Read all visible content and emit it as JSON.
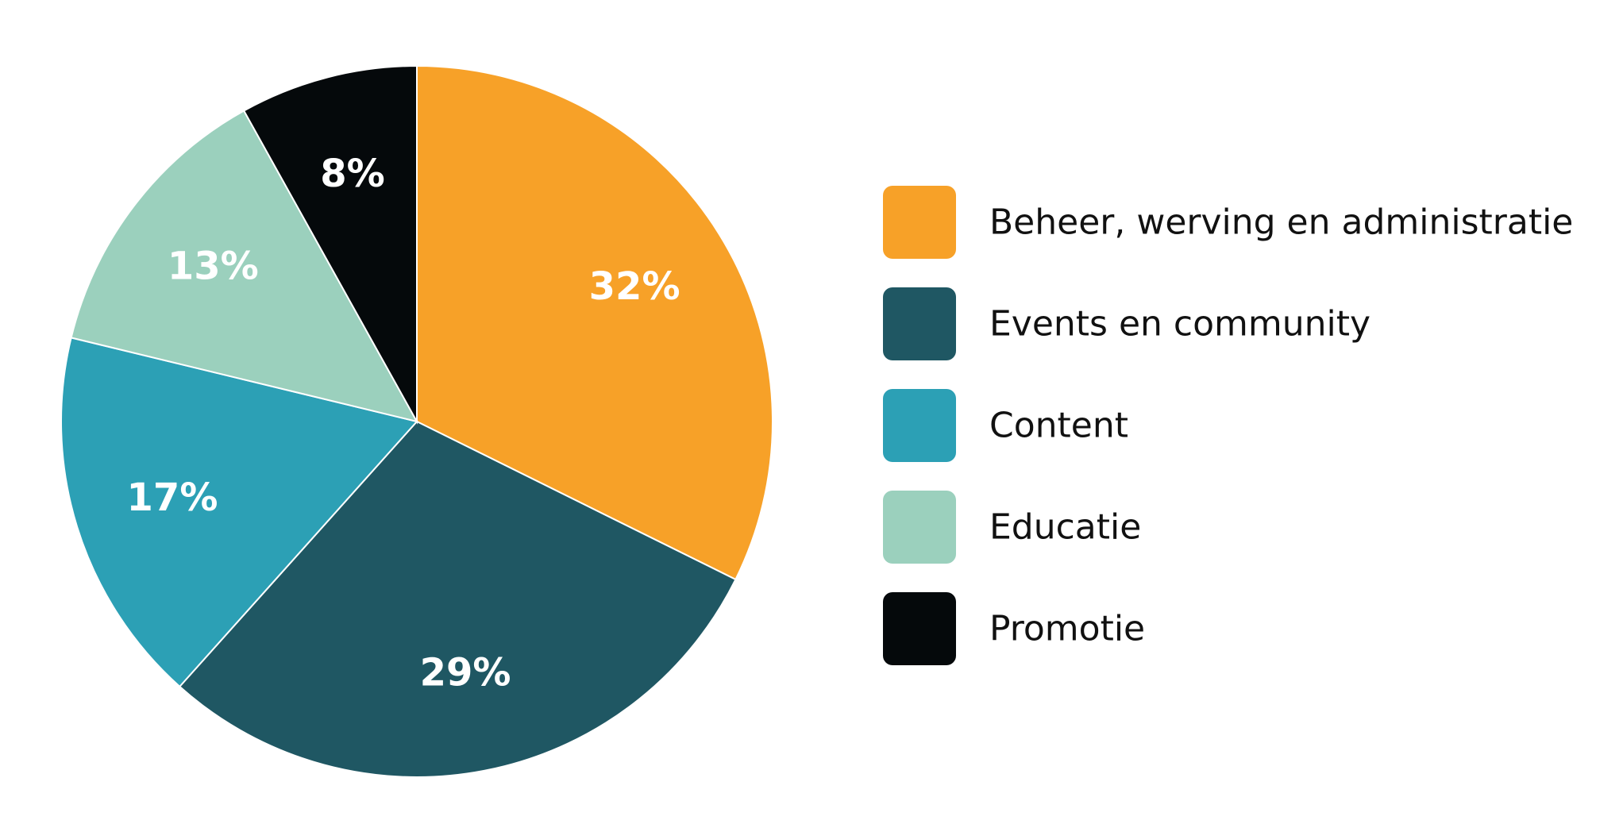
{
  "chart_data": {
    "type": "pie",
    "title": "",
    "start_angle_deg": 0,
    "direction": "clockwise",
    "legend_position": "right",
    "slices": [
      {
        "label": "Beheer, werving en administratie",
        "value": 32,
        "value_label": "32%",
        "color": "#F7A128"
      },
      {
        "label": "Events en community",
        "value": 29,
        "value_label": "29%",
        "color": "#1F5763"
      },
      {
        "label": "Content",
        "value": 17,
        "value_label": "17%",
        "color": "#2CA0B5"
      },
      {
        "label": "Educatie",
        "value": 13,
        "value_label": "13%",
        "color": "#9BD0BD"
      },
      {
        "label": "Promotie",
        "value": 8,
        "value_label": "8%",
        "color": "#05090B"
      }
    ]
  }
}
